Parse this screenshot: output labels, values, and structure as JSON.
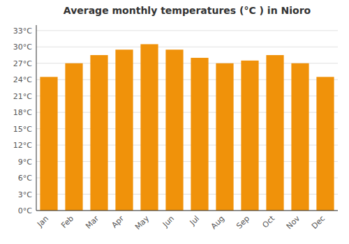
{
  "chart_data": {
    "type": "bar",
    "title": "Average monthly temperatures (°C ) in Nioro",
    "categories": [
      "Jan",
      "Feb",
      "Mar",
      "Apr",
      "May",
      "Jun",
      "Jul",
      "Aug",
      "Sep",
      "Oct",
      "Nov",
      "Dec"
    ],
    "values": [
      24.5,
      27.0,
      28.5,
      29.5,
      30.5,
      29.5,
      28.0,
      27.0,
      27.5,
      28.5,
      27.0,
      24.5
    ],
    "color": "#F0920A",
    "ylim": [
      0,
      34
    ],
    "yticks": [
      {
        "value": 0,
        "label": "0°C"
      },
      {
        "value": 3,
        "label": "3°C"
      },
      {
        "value": 6,
        "label": "6°C"
      },
      {
        "value": 9,
        "label": "9°C"
      },
      {
        "value": 12,
        "label": "12°C"
      },
      {
        "value": 15,
        "label": "15°C"
      },
      {
        "value": 18,
        "label": "18°C"
      },
      {
        "value": 21,
        "label": "21°C"
      },
      {
        "value": 24,
        "label": "24°C"
      },
      {
        "value": 27,
        "label": "27°C"
      },
      {
        "value": 30,
        "label": "30°C"
      },
      {
        "value": 33,
        "label": "33°C"
      }
    ],
    "grid": true
  }
}
